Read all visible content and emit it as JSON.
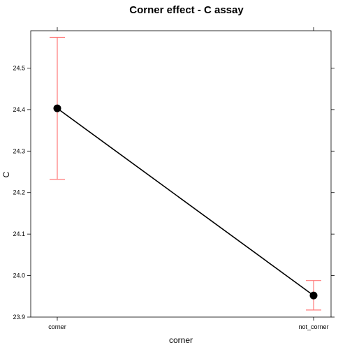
{
  "chart_data": {
    "type": "line",
    "title": "Corner effect - C assay",
    "xlabel": "corner",
    "ylabel": "C",
    "categories": [
      "corner",
      "not_corner"
    ],
    "series": [
      {
        "values": [
          24.403,
          23.952
        ],
        "lower": [
          24.232,
          23.917
        ],
        "upper": [
          24.574,
          23.988
        ]
      }
    ],
    "ylim": [
      23.9,
      24.59
    ],
    "yticks": [
      "23.9",
      "24.0",
      "24.1",
      "24.2",
      "24.3",
      "24.4",
      "24.5"
    ],
    "grid": false,
    "line_color": "#000000",
    "errorbar_color": "#ff7a7a"
  }
}
